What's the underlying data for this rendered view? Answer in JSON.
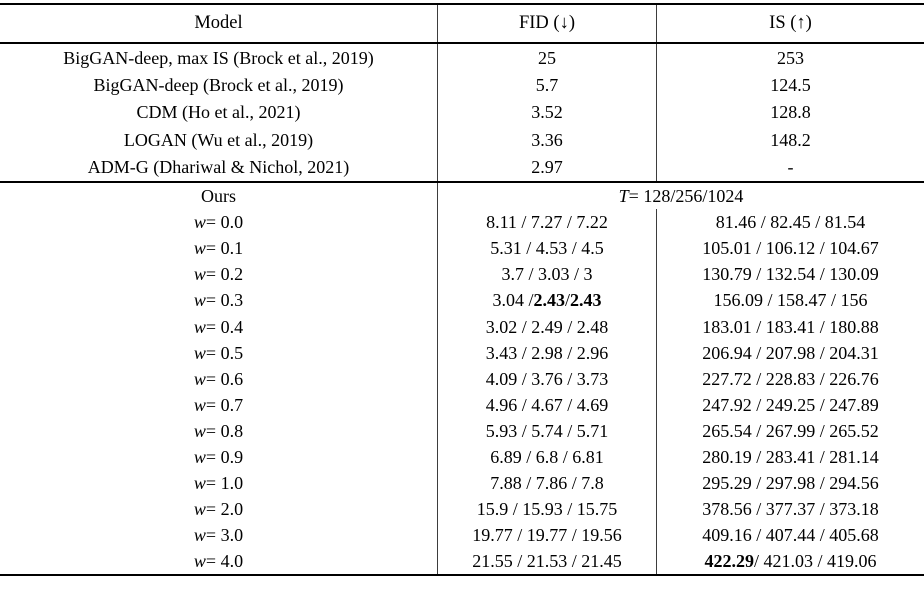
{
  "header": {
    "model": "Model",
    "fid": "FID (↓)",
    "is": "IS (↑)"
  },
  "baselines": [
    {
      "model": "BigGAN-deep, max IS (Brock et al., 2019)",
      "fid": "25",
      "is": "253"
    },
    {
      "model": "BigGAN-deep (Brock et al., 2019)",
      "fid": "5.7",
      "is": "124.5"
    },
    {
      "model": "CDM (Ho et al., 2021)",
      "fid": "3.52",
      "is": "128.8"
    },
    {
      "model": "LOGAN (Wu et al., 2019)",
      "fid": "3.36",
      "is": "148.2"
    },
    {
      "model": "ADM-G (Dhariwal & Nichol, 2021)",
      "fid": "2.97",
      "is": "-"
    }
  ],
  "ours": {
    "label": "Ours",
    "span_header": [
      {
        "t": "T",
        "i": true
      },
      {
        "t": " = 128/256/1024"
      }
    ],
    "rows": [
      {
        "w": [
          {
            "t": "w",
            "i": true
          },
          {
            "t": " = 0.0"
          }
        ],
        "fid": "8.11 / 7.27 / 7.22",
        "is": "81.46 / 82.45 / 81.54"
      },
      {
        "w": [
          {
            "t": "w",
            "i": true
          },
          {
            "t": " = 0.1"
          }
        ],
        "fid": "5.31 / 4.53 / 4.5",
        "is": "105.01 / 106.12 / 104.67"
      },
      {
        "w": [
          {
            "t": "w",
            "i": true
          },
          {
            "t": " = 0.2"
          }
        ],
        "fid": "3.7 / 3.03 / 3",
        "is": "130.79 / 132.54 / 130.09"
      },
      {
        "w": [
          {
            "t": "w",
            "i": true
          },
          {
            "t": " = 0.3"
          }
        ],
        "fid": [
          {
            "t": "3.04 / "
          },
          {
            "t": "2.43",
            "b": true
          },
          {
            "t": " / "
          },
          {
            "t": "2.43",
            "b": true
          }
        ],
        "is": "156.09 / 158.47 / 156"
      },
      {
        "w": [
          {
            "t": "w",
            "i": true
          },
          {
            "t": " = 0.4"
          }
        ],
        "fid": "3.02 / 2.49 / 2.48",
        "is": "183.01 / 183.41 / 180.88"
      },
      {
        "w": [
          {
            "t": "w",
            "i": true
          },
          {
            "t": " = 0.5"
          }
        ],
        "fid": "3.43 / 2.98 / 2.96",
        "is": "206.94 / 207.98 / 204.31"
      },
      {
        "w": [
          {
            "t": "w",
            "i": true
          },
          {
            "t": " = 0.6"
          }
        ],
        "fid": "4.09 / 3.76 / 3.73",
        "is": "227.72 / 228.83 / 226.76"
      },
      {
        "w": [
          {
            "t": "w",
            "i": true
          },
          {
            "t": " = 0.7"
          }
        ],
        "fid": "4.96 / 4.67 / 4.69",
        "is": "247.92 / 249.25 / 247.89"
      },
      {
        "w": [
          {
            "t": "w",
            "i": true
          },
          {
            "t": " = 0.8"
          }
        ],
        "fid": "5.93 / 5.74 / 5.71",
        "is": "265.54 / 267.99 / 265.52"
      },
      {
        "w": [
          {
            "t": "w",
            "i": true
          },
          {
            "t": " = 0.9"
          }
        ],
        "fid": "6.89 / 6.8 / 6.81",
        "is": "280.19 / 283.41 / 281.14"
      },
      {
        "w": [
          {
            "t": "w",
            "i": true
          },
          {
            "t": " = 1.0"
          }
        ],
        "fid": "7.88 / 7.86 / 7.8",
        "is": "295.29 / 297.98 / 294.56"
      },
      {
        "w": [
          {
            "t": "w",
            "i": true
          },
          {
            "t": " = 2.0"
          }
        ],
        "fid": "15.9 / 15.93 / 15.75",
        "is": "378.56 / 377.37 / 373.18"
      },
      {
        "w": [
          {
            "t": "w",
            "i": true
          },
          {
            "t": " = 3.0"
          }
        ],
        "fid": "19.77 / 19.77 / 19.56",
        "is": "409.16 / 407.44 / 405.68"
      },
      {
        "w": [
          {
            "t": "w",
            "i": true
          },
          {
            "t": " = 4.0"
          }
        ],
        "fid": "21.55 / 21.53 / 21.45",
        "is": [
          {
            "t": "422.29",
            "b": true
          },
          {
            "t": " / 421.03 / 419.06"
          }
        ]
      }
    ]
  },
  "colors": {
    "text": "#000000",
    "rule": "#000000",
    "divider": "#3d3d3d"
  }
}
